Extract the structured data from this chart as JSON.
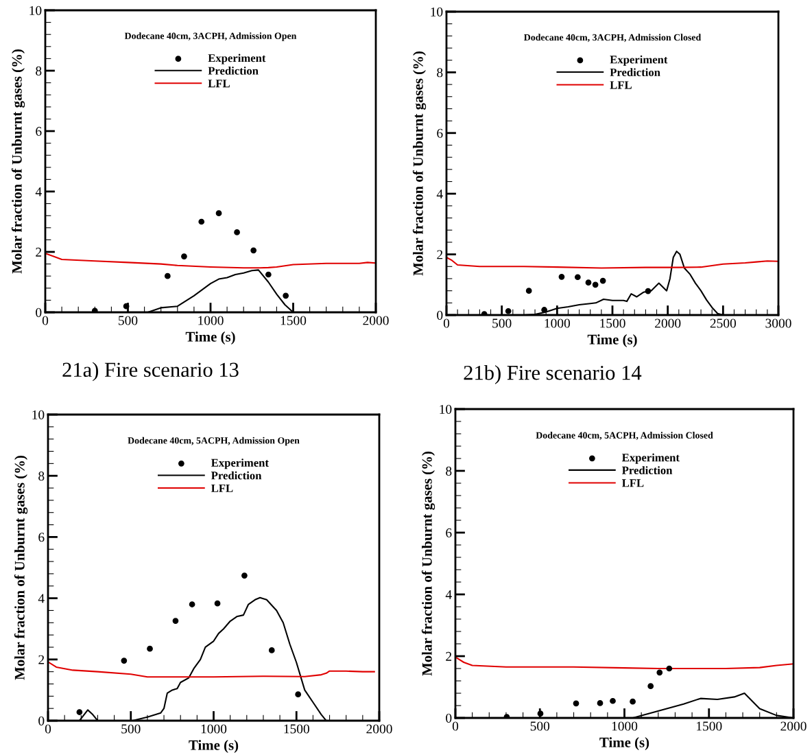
{
  "chart_data": [
    {
      "type": "line",
      "title": "Dodecane 40cm, 3ACPH, Admission Open",
      "xlabel": "Time (s)",
      "ylabel": "Molar fraction of Unburnt gases (%)",
      "xlim": [
        0,
        2000
      ],
      "xticks": [
        0,
        500,
        1000,
        1500,
        2000
      ],
      "ylim": [
        0,
        10
      ],
      "yticks": [
        0,
        2,
        4,
        6,
        8,
        10
      ],
      "legend": "top",
      "grid": false,
      "annotations": [
        "21a) Fire scenario 13"
      ],
      "series": [
        {
          "name": "Experiment",
          "type": "scatter",
          "marker": "circle",
          "color": "#000000",
          "x": [
            300,
            490,
            740,
            840,
            945,
            1050,
            1160,
            1260,
            1350,
            1455
          ],
          "values": [
            0.05,
            0.2,
            1.2,
            1.85,
            3.0,
            3.28,
            2.65,
            2.05,
            1.25,
            0.55
          ]
        },
        {
          "name": "Prediction",
          "color": "#000000",
          "x": [
            620,
            700,
            800,
            900,
            1000,
            1050,
            1100,
            1150,
            1200,
            1250,
            1290,
            1350,
            1400,
            1450,
            1500
          ],
          "values": [
            0,
            0.15,
            0.2,
            0.55,
            0.95,
            1.1,
            1.15,
            1.25,
            1.3,
            1.38,
            1.4,
            1.0,
            0.6,
            0.25,
            0
          ]
        },
        {
          "name": "LFL",
          "color": "#e00000",
          "x": [
            0,
            50,
            100,
            300,
            500,
            700,
            800,
            1000,
            1200,
            1300,
            1350,
            1400,
            1500,
            1700,
            1900,
            1950,
            2000
          ],
          "values": [
            1.95,
            1.85,
            1.75,
            1.7,
            1.65,
            1.6,
            1.55,
            1.5,
            1.47,
            1.47,
            1.48,
            1.5,
            1.58,
            1.62,
            1.62,
            1.65,
            1.63
          ]
        }
      ]
    },
    {
      "type": "line",
      "title": "Dodecane 40cm, 3ACPH, Admission Closed",
      "xlabel": "Time (s)",
      "ylabel": "Molar fraction of Unburnt gases (%)",
      "xlim": [
        0,
        3000
      ],
      "xticks": [
        0,
        500,
        1000,
        1500,
        2000,
        2500,
        3000
      ],
      "ylim": [
        0,
        10
      ],
      "yticks": [
        0,
        2,
        4,
        6,
        8,
        10
      ],
      "legend": "top",
      "grid": false,
      "annotations": [
        "21b) Fire scenario 14"
      ],
      "series": [
        {
          "name": "Experiment",
          "type": "scatter",
          "marker": "circle",
          "color": "#000000",
          "x": [
            342,
            559,
            745,
            884,
            1041,
            1186,
            1283,
            1346,
            1414,
            1822
          ],
          "values": [
            0.03,
            0.13,
            0.8,
            0.17,
            1.26,
            1.25,
            1.07,
            1.0,
            1.13,
            0.79
          ]
        },
        {
          "name": "Prediction",
          "color": "#000000",
          "x": [
            0,
            700,
            800,
            900,
            1000,
            1100,
            1200,
            1300,
            1350,
            1420,
            1500,
            1600,
            1630,
            1670,
            1720,
            1780,
            1850,
            1920,
            1990,
            2020,
            2050,
            2080,
            2110,
            2150,
            2200,
            2250,
            2300,
            2350,
            2400,
            2450,
            2500,
            2800
          ],
          "values": [
            0,
            0,
            0.02,
            0.1,
            0.22,
            0.27,
            0.34,
            0.38,
            0.4,
            0.52,
            0.48,
            0.48,
            0.45,
            0.7,
            0.6,
            0.75,
            0.8,
            1.05,
            0.8,
            1.2,
            1.9,
            2.1,
            2.0,
            1.55,
            1.35,
            1.05,
            0.8,
            0.5,
            0.25,
            0.05,
            0,
            0
          ]
        },
        {
          "name": "LFL",
          "color": "#e00000",
          "x": [
            0,
            50,
            100,
            300,
            700,
            1000,
            1400,
            1800,
            2100,
            2300,
            2500,
            2700,
            2800,
            2900,
            3000
          ],
          "values": [
            1.9,
            1.8,
            1.65,
            1.6,
            1.6,
            1.58,
            1.55,
            1.57,
            1.57,
            1.58,
            1.68,
            1.72,
            1.75,
            1.78,
            1.77
          ]
        }
      ]
    },
    {
      "type": "line",
      "title": "Dodecane 40cm, 5ACPH, Admission Open",
      "xlabel": "Time (s)",
      "ylabel": "Molar fraction of Unburnt gases (%)",
      "xlim": [
        0,
        2000
      ],
      "xticks": [
        0,
        500,
        1000,
        1500,
        2000
      ],
      "ylim": [
        0,
        10
      ],
      "yticks": [
        0,
        2,
        4,
        6,
        8,
        10
      ],
      "legend": "top",
      "grid": false,
      "series": [
        {
          "name": "Experiment",
          "type": "scatter",
          "marker": "circle",
          "color": "#000000",
          "x": [
            190,
            459,
            615,
            770,
            870,
            1023,
            1186,
            1351,
            1510
          ],
          "values": [
            0.28,
            1.96,
            2.35,
            3.26,
            3.8,
            3.83,
            4.74,
            2.3,
            0.86
          ]
        },
        {
          "name": "Prediction",
          "color": "#000000",
          "x": [
            190,
            240,
            270,
            300,
            400,
            510,
            600,
            650,
            680,
            700,
            720,
            750,
            780,
            800,
            850,
            880,
            920,
            950,
            1000,
            1030,
            1060,
            1100,
            1140,
            1180,
            1210,
            1250,
            1280,
            1320,
            1380,
            1420,
            1460,
            1500,
            1550,
            1600,
            1650,
            1680
          ],
          "values": [
            0,
            0.35,
            0.2,
            0,
            null,
            0,
            0.12,
            0.2,
            0.25,
            0.4,
            0.9,
            1.0,
            1.05,
            1.25,
            1.4,
            1.7,
            2.0,
            2.4,
            2.6,
            2.85,
            3.0,
            3.25,
            3.4,
            3.45,
            3.8,
            3.95,
            4.02,
            3.95,
            3.6,
            3.2,
            2.5,
            1.9,
            1.0,
            0.6,
            0.2,
            0
          ]
        },
        {
          "name": "LFL",
          "color": "#e00000",
          "x": [
            0,
            50,
            150,
            300,
            500,
            600,
            800,
            1000,
            1300,
            1550,
            1650,
            1680,
            1700,
            1800,
            1900,
            1970
          ],
          "values": [
            1.92,
            1.75,
            1.65,
            1.6,
            1.52,
            1.43,
            1.43,
            1.43,
            1.45,
            1.44,
            1.5,
            1.55,
            1.62,
            1.62,
            1.6,
            1.6
          ]
        }
      ]
    },
    {
      "type": "line",
      "title": "Dodecane 40cm, 5ACPH, Admission Closed",
      "xlabel": "Time (s)",
      "ylabel": "Molar fraction of Unburnt gases (%)",
      "xlim": [
        0,
        2000
      ],
      "xticks": [
        0,
        500,
        1000,
        1500,
        2000
      ],
      "ylim": [
        0,
        10
      ],
      "yticks": [
        0,
        2,
        4,
        6,
        8,
        10
      ],
      "legend": "top",
      "grid": false,
      "series": [
        {
          "name": "Experiment",
          "type": "scatter",
          "marker": "circle",
          "color": "#000000",
          "x": [
            304,
            503,
            714,
            856,
            931,
            1049,
            1155,
            1208,
            1265
          ],
          "values": [
            0.03,
            0.14,
            0.47,
            0.48,
            0.55,
            0.53,
            1.03,
            1.47,
            1.6
          ]
        },
        {
          "name": "Prediction",
          "color": "#000000",
          "x": [
            0,
            1050,
            1150,
            1250,
            1350,
            1450,
            1550,
            1650,
            1710,
            1800,
            1900,
            2000
          ],
          "values": [
            0,
            0,
            0.15,
            0.3,
            0.45,
            0.63,
            0.6,
            0.68,
            0.8,
            0.3,
            0.08,
            0
          ]
        },
        {
          "name": "LFL",
          "color": "#e00000",
          "x": [
            0,
            50,
            100,
            300,
            700,
            1000,
            1200,
            1400,
            1600,
            1800,
            1900,
            2000
          ],
          "values": [
            1.97,
            1.8,
            1.7,
            1.65,
            1.65,
            1.62,
            1.6,
            1.6,
            1.6,
            1.63,
            1.7,
            1.75
          ]
        }
      ]
    }
  ]
}
